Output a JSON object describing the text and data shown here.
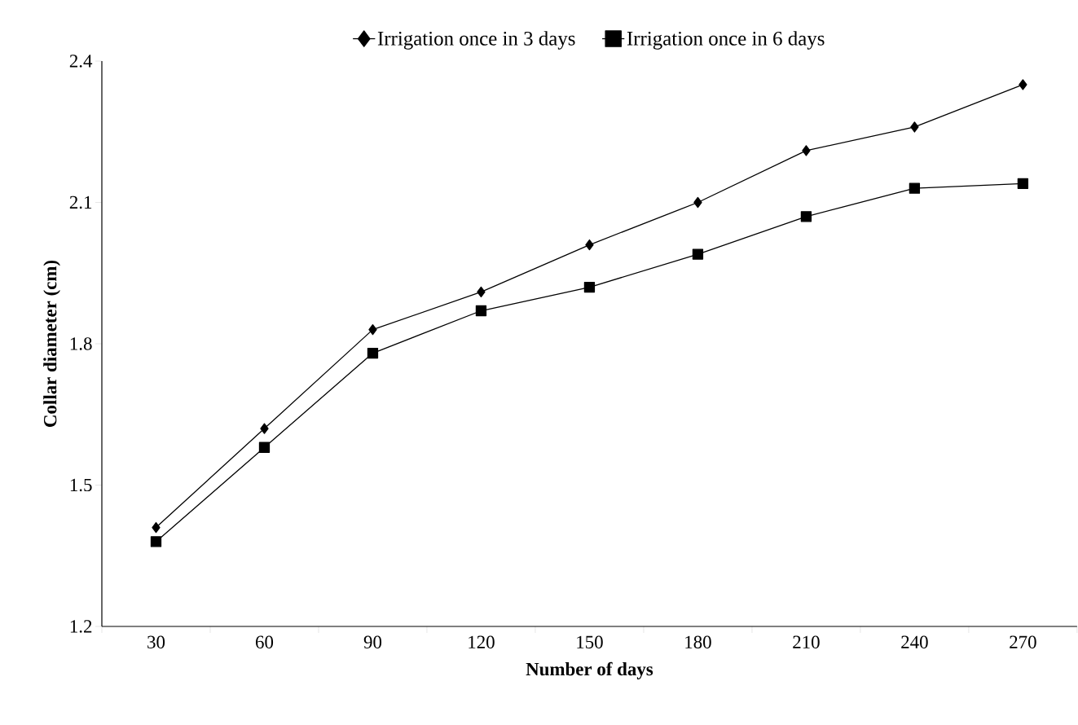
{
  "chart_data": {
    "type": "line",
    "xlabel": "Number of days",
    "ylabel": "Collar diameter (cm)",
    "categories": [
      "30",
      "60",
      "90",
      "120",
      "150",
      "180",
      "210",
      "240",
      "270"
    ],
    "series": [
      {
        "name": "Irrigation once in 3 days",
        "color": "#000000",
        "marker": "diamond",
        "values": [
          1.41,
          1.62,
          1.83,
          1.91,
          2.01,
          2.1,
          2.21,
          2.26,
          2.35
        ]
      },
      {
        "name": "Irrigation once in 6 days",
        "color": "#000000",
        "marker": "square",
        "values": [
          1.38,
          1.58,
          1.78,
          1.87,
          1.92,
          1.99,
          2.07,
          2.13,
          2.14
        ]
      }
    ],
    "ylim": [
      1.2,
      2.4
    ],
    "yticks": [
      1.2,
      1.5,
      1.8,
      2.1,
      2.4
    ],
    "grid": false,
    "legend": "top",
    "line_style": "solid"
  }
}
